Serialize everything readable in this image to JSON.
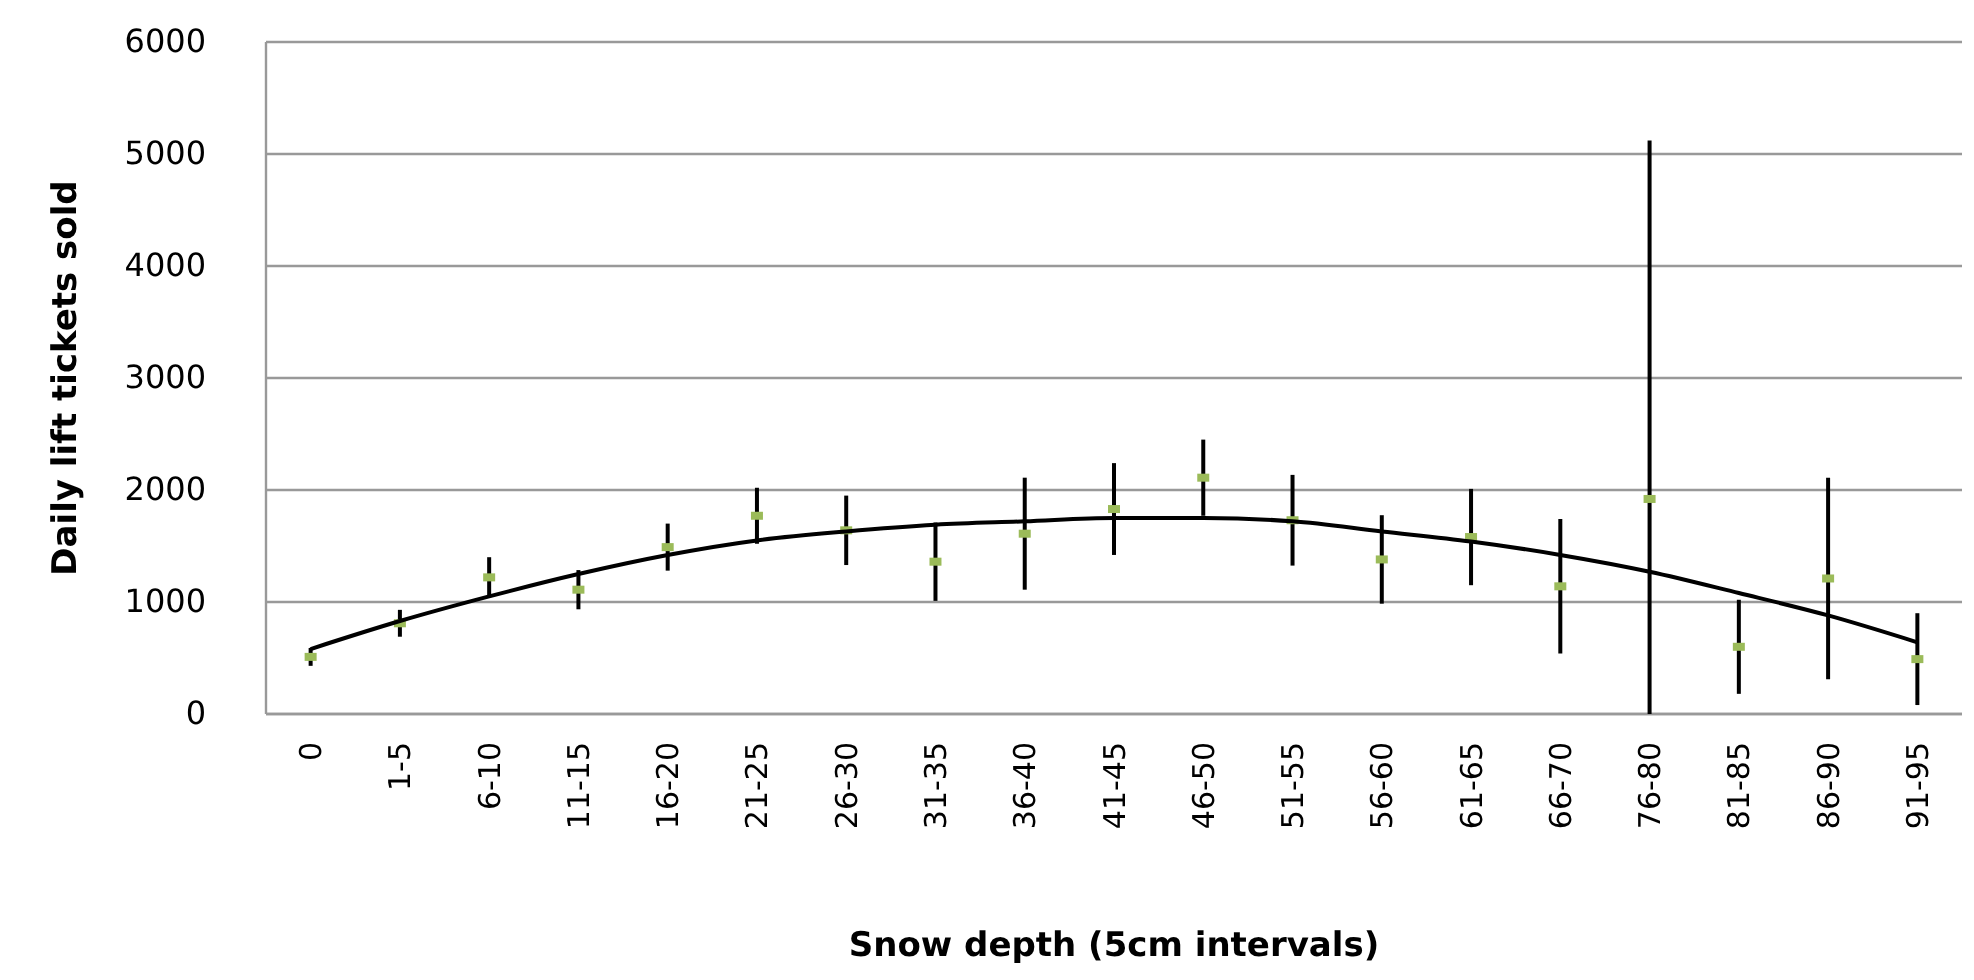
{
  "chart_data": {
    "type": "scatter",
    "xlabel": "Snow depth (5cm intervals)",
    "ylabel": "Daily lift tickets sold",
    "categories": [
      "0",
      "1-5",
      "6-10",
      "11-15",
      "16-20",
      "21-25",
      "26-30",
      "31-35",
      "36-40",
      "41-45",
      "46-50",
      "51-55",
      "56-60",
      "61-65",
      "66-70",
      "76-80",
      "81-85",
      "86-90",
      "91-95"
    ],
    "series": [
      {
        "color": "#9bbb59",
        "marker": "square",
        "values": [
          510,
          810,
          1220,
          1110,
          1490,
          1770,
          1640,
          1360,
          1610,
          1830,
          2110,
          1730,
          1380,
          1580,
          1140,
          1920,
          600,
          1210,
          490
        ],
        "errors": [
          80,
          120,
          180,
          175,
          210,
          250,
          310,
          350,
          500,
          410,
          340,
          405,
          395,
          430,
          600,
          [
            0,
            5120
          ],
          420,
          900,
          410
        ]
      },
      {
        "type": "line",
        "color": "#000000",
        "marker": "none",
        "line_style": "solid",
        "values": [
          580,
          830,
          1050,
          1250,
          1420,
          1550,
          1630,
          1690,
          1720,
          1750,
          1750,
          1720,
          1630,
          1540,
          1420,
          1270,
          1080,
          880,
          640
        ]
      }
    ],
    "ylim": [
      0,
      6000
    ],
    "yticks": [
      0,
      1000,
      2000,
      3000,
      4000,
      5000,
      6000
    ],
    "grid": "y"
  }
}
